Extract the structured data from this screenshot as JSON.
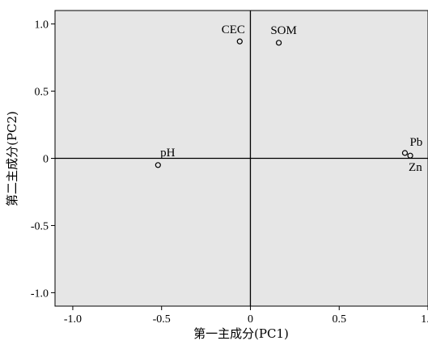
{
  "chart_data": {
    "type": "scatter",
    "title": "",
    "xlabel": "第一主成分(PC1)",
    "ylabel": "第二主成分(PC2)",
    "xlim": [
      -1.1,
      1.0
    ],
    "ylim": [
      -1.1,
      1.1
    ],
    "x_ticks": [
      "-1.0",
      "-0.5",
      "0",
      "0.5",
      "1.0"
    ],
    "y_ticks": [
      "1.0",
      "0.5",
      "0",
      "-0.5",
      "-1.0"
    ],
    "grid": false,
    "reference_lines": {
      "x": 0,
      "y": 0
    },
    "colors": {
      "plot_background": "#e6e6e6",
      "marker": "#000000"
    },
    "points": [
      {
        "label": "CEC",
        "x": -0.06,
        "y": 0.87
      },
      {
        "label": "SOM",
        "x": 0.16,
        "y": 0.86
      },
      {
        "label": "pH",
        "x": -0.52,
        "y": -0.05
      },
      {
        "label": "Pb",
        "x": 0.87,
        "y": 0.04
      },
      {
        "label": "Zn",
        "x": 0.9,
        "y": 0.02
      }
    ]
  }
}
